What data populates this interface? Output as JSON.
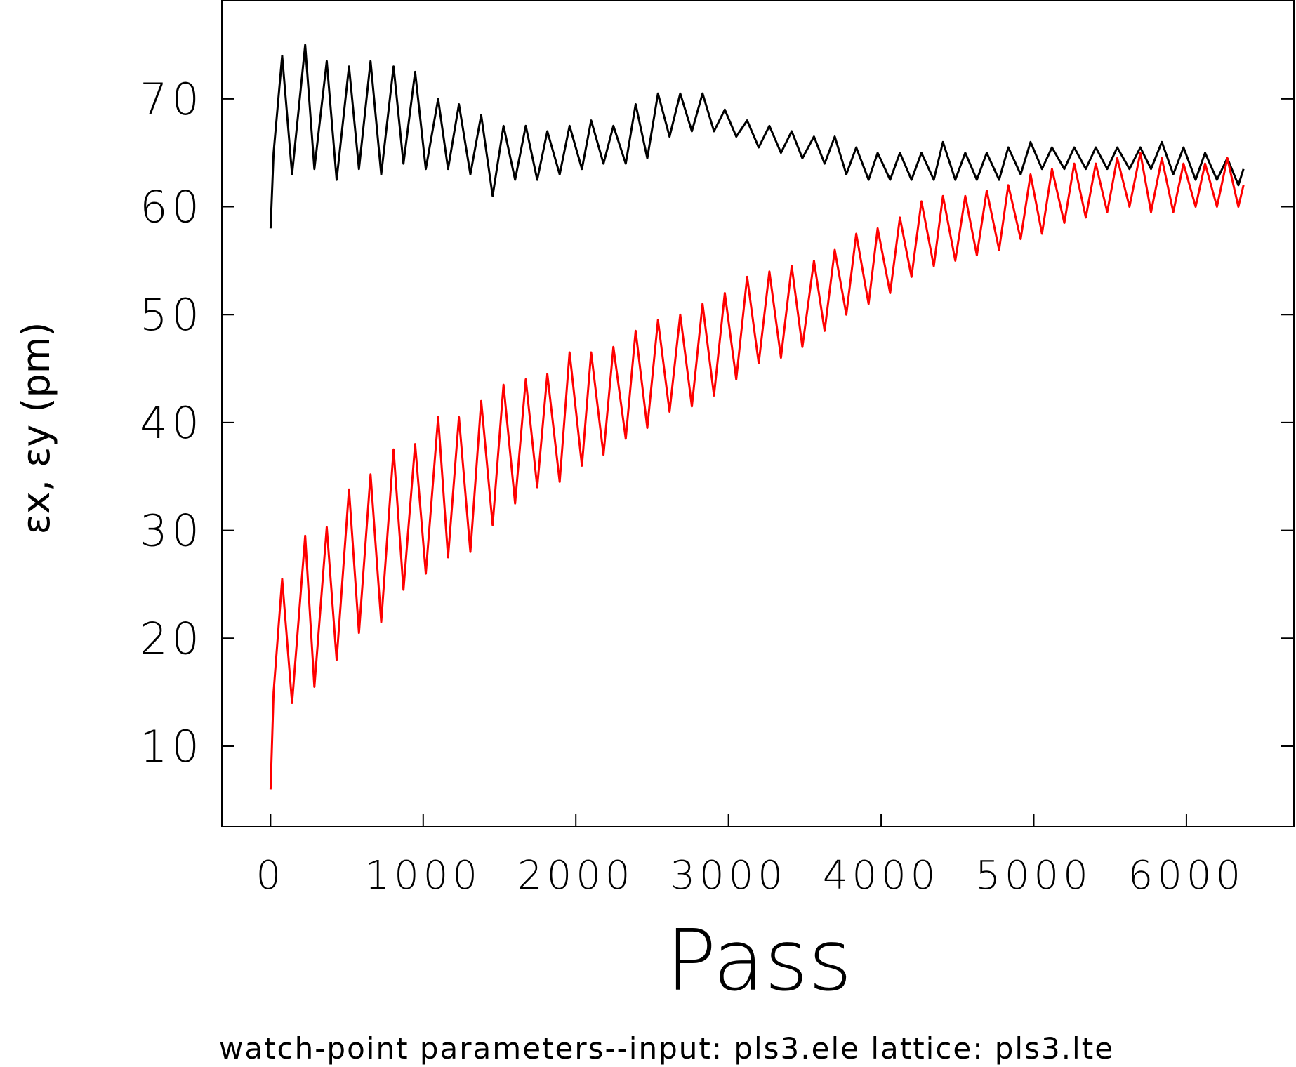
{
  "chart_data": {
    "type": "line",
    "x_label": "Pass",
    "y_label": "εx, εy (pm)",
    "footnote": "watch-point parameters--input: pls3.ele  lattice: pls3.lte",
    "x": [
      0,
      20,
      76,
      141,
      227,
      287,
      368,
      433,
      514,
      579,
      655,
      725,
      806,
      871,
      947,
      1017,
      1098,
      1163,
      1234,
      1309,
      1380,
      1455,
      1526,
      1602,
      1672,
      1747,
      1813,
      1894,
      1959,
      2040,
      2100,
      2181,
      2246,
      2327,
      2392,
      2468,
      2538,
      2614,
      2684,
      2760,
      2830,
      2905,
      2976,
      3051,
      3122,
      3198,
      3268,
      3344,
      3414,
      3484,
      3560,
      3630,
      3696,
      3772,
      3837,
      3918,
      3977,
      4059,
      4123,
      4199,
      4264,
      4345,
      4405,
      4486,
      4551,
      4627,
      4692,
      4773,
      4833,
      4914,
      4979,
      5054,
      5119,
      5200,
      5265,
      5341,
      5406,
      5481,
      5547,
      5627,
      5698,
      5768,
      5839,
      5914,
      5981,
      6060,
      6122,
      6200,
      6268,
      6340,
      6374
    ],
    "series": [
      {
        "color": "#000000",
        "values": [
          58,
          65,
          74,
          63,
          75,
          63.5,
          73.5,
          62.5,
          73,
          63.5,
          73.5,
          63,
          73,
          64,
          72.5,
          63.5,
          70,
          63.5,
          69.5,
          63,
          68.5,
          61,
          67.5,
          62.5,
          67.5,
          62.5,
          67,
          63,
          67.5,
          63.5,
          68,
          64,
          67.5,
          64,
          69.5,
          64.5,
          70.5,
          66.5,
          70.5,
          67,
          70.5,
          67,
          69,
          66.5,
          68,
          65.5,
          67.5,
          65,
          67,
          64.5,
          66.5,
          64,
          66.5,
          63,
          65.5,
          62.5,
          65,
          62.5,
          65,
          62.5,
          65,
          62.5,
          66,
          62.5,
          65,
          62.5,
          65,
          62.5,
          65.5,
          63,
          66,
          63.5,
          65.5,
          63.5,
          65.5,
          63.5,
          65.5,
          63.5,
          65.5,
          63.5,
          65.5,
          63.5,
          66,
          63,
          65.5,
          62.5,
          65,
          62.5,
          64.5,
          62,
          63.5
        ]
      },
      {
        "color": "#ff0000",
        "values": [
          6,
          15,
          25.5,
          14,
          29.5,
          15.5,
          30.3,
          18,
          33.8,
          20.5,
          35.2,
          21.5,
          37.5,
          24.5,
          38,
          26,
          40.5,
          27.5,
          40.5,
          28,
          42,
          30.5,
          43.5,
          32.5,
          44,
          34,
          44.5,
          34.5,
          46.5,
          36,
          46.5,
          37,
          47,
          38.5,
          48.5,
          39.5,
          49.5,
          41,
          50,
          41.5,
          51,
          42.5,
          52,
          44,
          53.5,
          45.5,
          54,
          46,
          54.5,
          47,
          55,
          48.5,
          56,
          50,
          57.5,
          51,
          58,
          52,
          59,
          53.5,
          60.5,
          54.5,
          61,
          55,
          61,
          55.5,
          61.5,
          56,
          62,
          57,
          63,
          57.5,
          63.5,
          58.5,
          64,
          59,
          64,
          59.5,
          64.5,
          60,
          65,
          59.5,
          64.5,
          59.5,
          64,
          60,
          64,
          60,
          64.5,
          60,
          62
        ]
      }
    ],
    "xlim": [
      -319,
      6704
    ],
    "ylim": [
      2.58,
      79.1
    ],
    "xticks": [
      0,
      1000,
      2000,
      3000,
      4000,
      5000,
      6000
    ],
    "yticks": [
      10,
      20,
      30,
      40,
      50,
      60,
      70
    ]
  }
}
